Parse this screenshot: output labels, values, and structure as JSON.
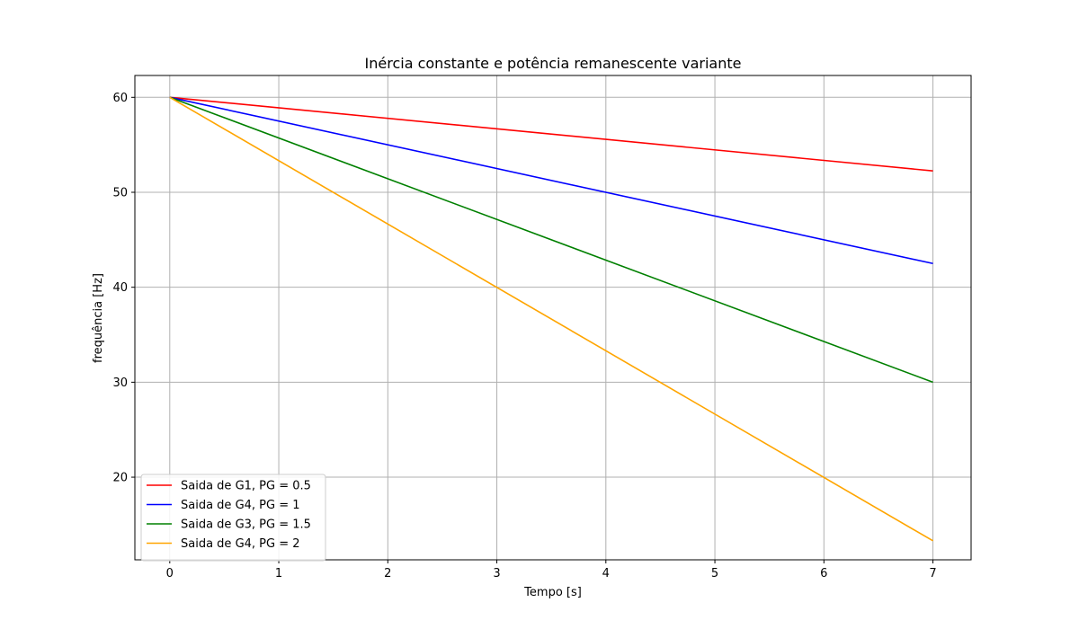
{
  "chart_data": {
    "type": "line",
    "title": "Inércia constante e potência remanescente variante",
    "xlabel": "Tempo [s]",
    "ylabel": "frequência [Hz]",
    "xlim": [
      -0.32,
      7.35
    ],
    "ylim": [
      11.3,
      62.3
    ],
    "xticks": [
      0,
      1,
      2,
      3,
      4,
      5,
      6,
      7
    ],
    "yticks": [
      20,
      30,
      40,
      50,
      60
    ],
    "grid": true,
    "legend_position": "lower-left",
    "series": [
      {
        "name": "Saida de G1, PG = 0.5",
        "color": "#ff0000",
        "x": [
          0,
          7
        ],
        "y": [
          60,
          52.25
        ]
      },
      {
        "name": "Saida de G4, PG = 1",
        "color": "#0000ff",
        "x": [
          0,
          7
        ],
        "y": [
          60,
          42.5
        ]
      },
      {
        "name": "Saida de G3, PG = 1.5",
        "color": "#008000",
        "x": [
          0,
          7
        ],
        "y": [
          60,
          30.0
        ]
      },
      {
        "name": "Saida de G4, PG = 2",
        "color": "#ffa500",
        "x": [
          0,
          7
        ],
        "y": [
          60,
          13.3
        ]
      }
    ]
  }
}
